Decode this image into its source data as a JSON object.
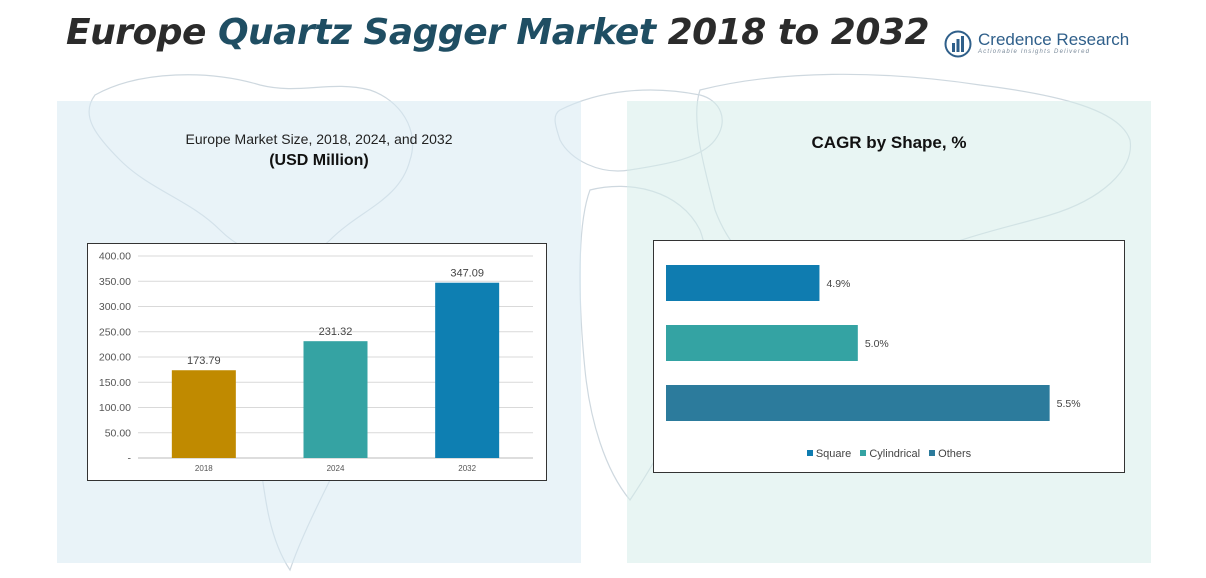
{
  "header": {
    "title_part1": "Europe",
    "title_part2": "Quartz Sagger Market",
    "title_part3": "2018 to 2032"
  },
  "logo": {
    "icon": "bar-chart-logo-icon",
    "name": "Credence Research",
    "tagline": "Actionable Insights Delivered"
  },
  "left_panel": {
    "subtitle": "Europe Market Size, 2018, 2024, and 2032",
    "unit": "(USD Million)"
  },
  "right_panel": {
    "title": "CAGR by Shape, %"
  },
  "colors": {
    "bar_2018": "#c08a00",
    "bar_2024": "#35a3a3",
    "bar_2032": "#0e7fb2",
    "square": "#0f7cb0",
    "cylindrical": "#34a3a3",
    "others": "#2c7b9c"
  },
  "chart_data": [
    {
      "type": "bar",
      "title": "Europe Market Size, 2018, 2024, and 2032",
      "ylabel": "USD Million",
      "categories": [
        "2018",
        "2024",
        "2032"
      ],
      "values": [
        173.79,
        231.32,
        347.09
      ],
      "value_labels": [
        "173.79",
        "231.32",
        "347.09"
      ],
      "ylim": [
        0,
        400
      ],
      "yticks": [
        0,
        50,
        100,
        150,
        200,
        250,
        300,
        350,
        400
      ],
      "ytick_labels": [
        "-",
        "50.00",
        "100.00",
        "150.00",
        "200.00",
        "250.00",
        "300.00",
        "350.00",
        "400.00"
      ],
      "grid": true
    },
    {
      "type": "bar",
      "orientation": "horizontal",
      "title": "CAGR by Shape, %",
      "categories": [
        "Square",
        "Cylindrical",
        "Others"
      ],
      "values": [
        4.9,
        5.0,
        5.5
      ],
      "value_labels": [
        "4.9%",
        "5.0%",
        "5.5%"
      ],
      "xlim": [
        4.5,
        5.6
      ],
      "legend": "bottom",
      "grid": false
    }
  ]
}
